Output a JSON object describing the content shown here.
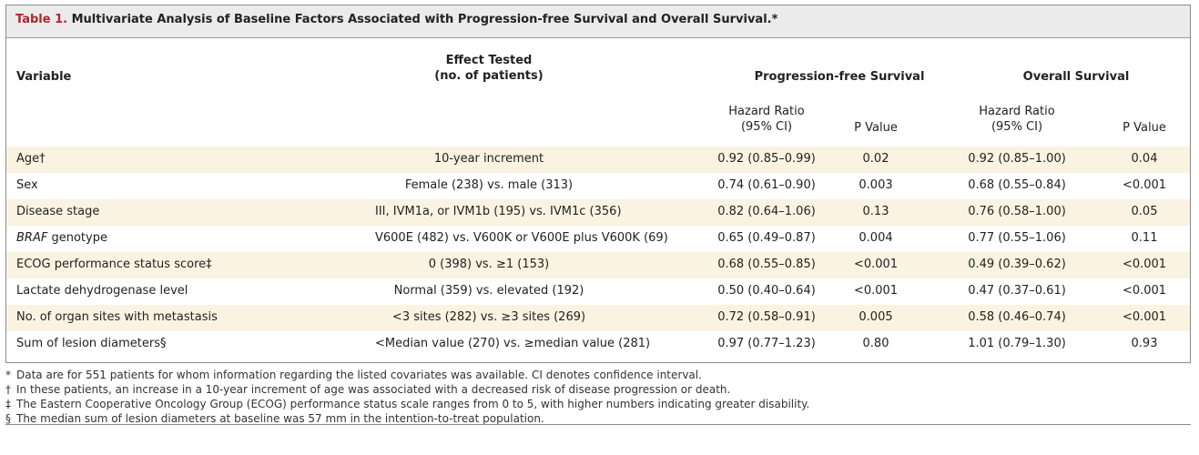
{
  "table": {
    "number": "Table 1.",
    "title": "Multivariate Analysis of Baseline Factors Associated with Progression-free Survival and Overall Survival.*",
    "headers": {
      "variable": "Variable",
      "effect_line1": "Effect Tested",
      "effect_line2": "(no. of patients)",
      "pfs": "Progression-free Survival",
      "os": "Overall Survival",
      "hr_line1": "Hazard Ratio",
      "hr_line2": "(95% CI)",
      "pvalue": "P Value"
    },
    "rows": [
      {
        "variable": "Age†",
        "effect": "10-year increment",
        "pfs_hr": "0.92 (0.85–0.99)",
        "pfs_p": "0.02",
        "os_hr": "0.92 (0.85–1.00)",
        "os_p": "0.04"
      },
      {
        "variable": "Sex",
        "effect": "Female (238) vs. male (313)",
        "pfs_hr": "0.74 (0.61–0.90)",
        "pfs_p": "0.003",
        "os_hr": "0.68 (0.55–0.84)",
        "os_p": "<0.001"
      },
      {
        "variable": "Disease stage",
        "effect": "III, IVM1a, or IVM1b (195) vs. IVM1c (356)",
        "pfs_hr": "0.82 (0.64–1.06)",
        "pfs_p": "0.13",
        "os_hr": "0.76 (0.58–1.00)",
        "os_p": "0.05"
      },
      {
        "variable_italic": "BRAF",
        "variable_rest": " genotype",
        "effect": "V600E (482) vs. V600K or V600E plus V600K (69)",
        "pfs_hr": "0.65 (0.49–0.87)",
        "pfs_p": "0.004",
        "os_hr": "0.77 (0.55–1.06)",
        "os_p": "0.11"
      },
      {
        "variable": "ECOG performance status score‡",
        "effect": "0 (398) vs. ≥1 (153)",
        "pfs_hr": "0.68 (0.55–0.85)",
        "pfs_p": "<0.001",
        "os_hr": "0.49 (0.39–0.62)",
        "os_p": "<0.001"
      },
      {
        "variable": "Lactate dehydrogenase level",
        "effect": "Normal (359) vs. elevated (192)",
        "pfs_hr": "0.50 (0.40–0.64)",
        "pfs_p": "<0.001",
        "os_hr": "0.47 (0.37–0.61)",
        "os_p": "<0.001"
      },
      {
        "variable": "No. of organ sites with metastasis",
        "effect": "<3 sites (282) vs. ≥3 sites (269)",
        "pfs_hr": "0.72 (0.58–0.91)",
        "pfs_p": "0.005",
        "os_hr": "0.58 (0.46–0.74)",
        "os_p": "<0.001"
      },
      {
        "variable": "Sum of lesion diameters§",
        "effect": "<Median value (270) vs. ≥median value (281)",
        "pfs_hr": "0.97 (0.77–1.23)",
        "pfs_p": "0.80",
        "os_hr": "1.01 (0.79–1.30)",
        "os_p": "0.93"
      }
    ]
  },
  "footnotes": [
    {
      "symbol": "*",
      "text": "Data are for 551 patients for whom information regarding the listed covariates was available. CI denotes confidence interval."
    },
    {
      "symbol": "†",
      "text": "In these patients, an increase in a 10-year increment of age was associated with a decreased risk of disease progression or death."
    },
    {
      "symbol": "‡",
      "text": "The Eastern Cooperative Oncology Group (ECOG) performance status scale ranges from 0 to 5, with higher numbers indicating greater disability."
    },
    {
      "symbol": "§",
      "text": "The median sum of lesion diameters at baseline was 57 mm in the intention-to-treat population."
    }
  ]
}
